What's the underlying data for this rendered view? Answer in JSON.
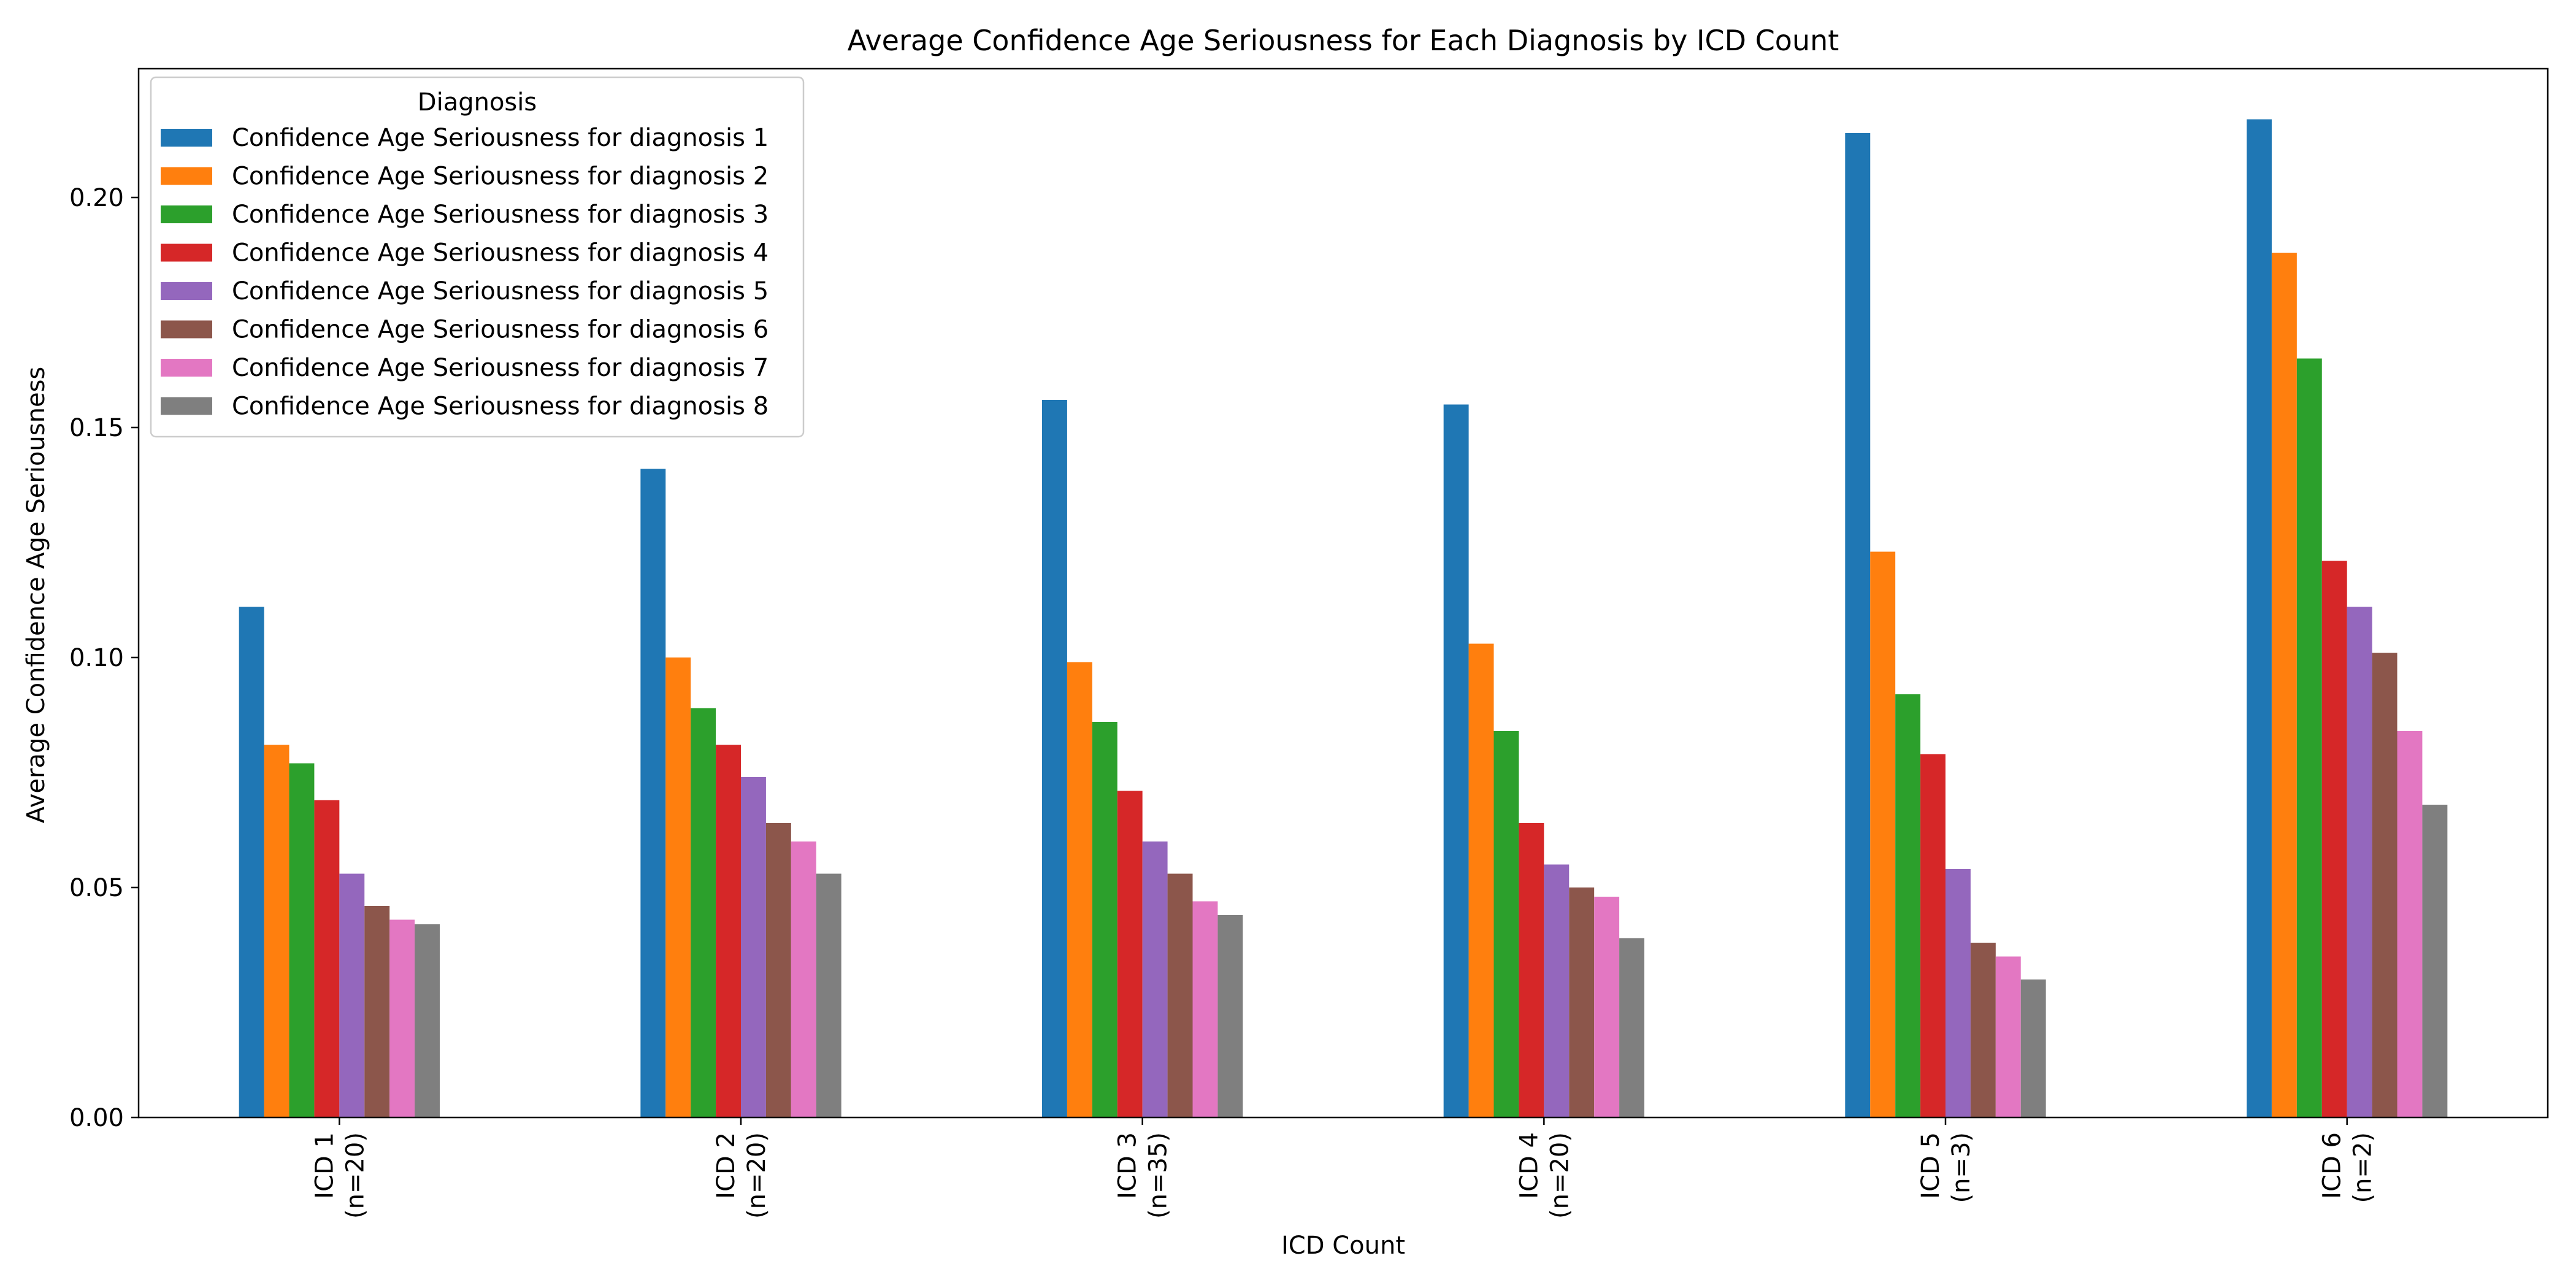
{
  "chart_data": {
    "type": "bar",
    "title": "Average Confidence Age Seriousness for Each Diagnosis by ICD Count",
    "xlabel": "ICD Count",
    "ylabel": "Average Confidence Age Seriousness",
    "ylim": [
      0,
      0.228
    ],
    "yticks": [
      0.0,
      0.05,
      0.1,
      0.15,
      0.2
    ],
    "ytick_labels": [
      "0.00",
      "0.05",
      "0.10",
      "0.15",
      "0.20"
    ],
    "grid": false,
    "categories": [
      [
        "ICD 1",
        "(n=20)"
      ],
      [
        "ICD 2",
        "(n=20)"
      ],
      [
        "ICD 3",
        "(n=35)"
      ],
      [
        "ICD 4",
        "(n=20)"
      ],
      [
        "ICD 5",
        "(n=3)"
      ],
      [
        "ICD 6",
        "(n=2)"
      ]
    ],
    "legend": {
      "title": "Diagnosis",
      "position": "top-left"
    },
    "series": [
      {
        "name": "Confidence Age Seriousness for diagnosis 1",
        "color": "#1f77b4",
        "values": [
          0.111,
          0.141,
          0.156,
          0.155,
          0.214,
          0.217
        ]
      },
      {
        "name": "Confidence Age Seriousness for diagnosis 2",
        "color": "#ff7f0e",
        "values": [
          0.081,
          0.1,
          0.099,
          0.103,
          0.123,
          0.188
        ]
      },
      {
        "name": "Confidence Age Seriousness for diagnosis 3",
        "color": "#2ca02c",
        "values": [
          0.077,
          0.089,
          0.086,
          0.084,
          0.092,
          0.165
        ]
      },
      {
        "name": "Confidence Age Seriousness for diagnosis 4",
        "color": "#d62728",
        "values": [
          0.069,
          0.081,
          0.071,
          0.064,
          0.079,
          0.121
        ]
      },
      {
        "name": "Confidence Age Seriousness for diagnosis 5",
        "color": "#9467bd",
        "values": [
          0.053,
          0.074,
          0.06,
          0.055,
          0.054,
          0.111
        ]
      },
      {
        "name": "Confidence Age Seriousness for diagnosis 6",
        "color": "#8c564b",
        "values": [
          0.046,
          0.064,
          0.053,
          0.05,
          0.038,
          0.101
        ]
      },
      {
        "name": "Confidence Age Seriousness for diagnosis 7",
        "color": "#e377c2",
        "values": [
          0.043,
          0.06,
          0.047,
          0.048,
          0.035,
          0.084
        ]
      },
      {
        "name": "Confidence Age Seriousness for diagnosis 8",
        "color": "#7f7f7f",
        "values": [
          0.042,
          0.053,
          0.044,
          0.039,
          0.03,
          0.068
        ]
      }
    ]
  }
}
